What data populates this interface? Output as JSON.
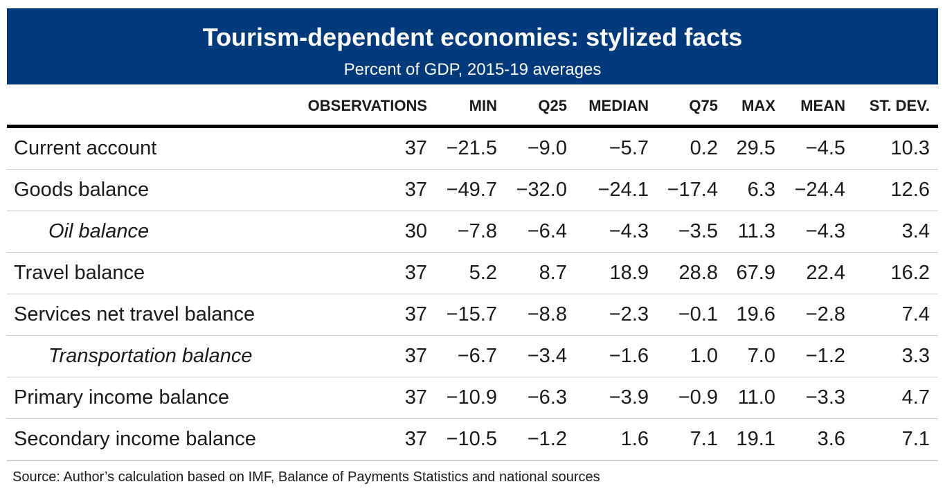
{
  "header": {
    "title": "Tourism-dependent economies: stylized facts",
    "subtitle": "Percent of GDP, 2015-19 averages"
  },
  "table": {
    "columns": [
      "OBSERVATIONS",
      "MIN",
      "Q25",
      "MEDIAN",
      "Q75",
      "MAX",
      "MEAN",
      "ST. DEV."
    ],
    "rows": [
      {
        "label": "Current account",
        "indent": false,
        "values": [
          "37",
          "−21.5",
          "−9.0",
          "−5.7",
          "0.2",
          "29.5",
          "−4.5",
          "10.3"
        ]
      },
      {
        "label": "Goods balance",
        "indent": false,
        "values": [
          "37",
          "−49.7",
          "−32.0",
          "−24.1",
          "−17.4",
          "6.3",
          "−24.4",
          "12.6"
        ]
      },
      {
        "label": "Oil balance",
        "indent": true,
        "values": [
          "30",
          "−7.8",
          "−6.4",
          "−4.3",
          "−3.5",
          "11.3",
          "−4.3",
          "3.4"
        ]
      },
      {
        "label": "Travel balance",
        "indent": false,
        "values": [
          "37",
          "5.2",
          "8.7",
          "18.9",
          "28.8",
          "67.9",
          "22.4",
          "16.2"
        ]
      },
      {
        "label": "Services net travel balance",
        "indent": false,
        "values": [
          "37",
          "−15.7",
          "−8.8",
          "−2.3",
          "−0.1",
          "19.6",
          "−2.8",
          "7.4"
        ]
      },
      {
        "label": "Transportation balance",
        "indent": true,
        "values": [
          "37",
          "−6.7",
          "−3.4",
          "−1.6",
          "1.0",
          "7.0",
          "−1.2",
          "3.3"
        ]
      },
      {
        "label": "Primary income balance",
        "indent": false,
        "values": [
          "37",
          "−10.9",
          "−6.3",
          "−3.9",
          "−0.9",
          "11.0",
          "−3.3",
          "4.7"
        ]
      },
      {
        "label": "Secondary income balance",
        "indent": false,
        "values": [
          "37",
          "−10.5",
          "−1.2",
          "1.6",
          "7.1",
          "19.1",
          "3.6",
          "7.1"
        ]
      }
    ]
  },
  "footer": {
    "source": "Source: Author’s calculation based on IMF, Balance of Payments Statistics and national sources"
  },
  "colors": {
    "banner_background": "#003a7d",
    "banner_text": "#ffffff",
    "rule": "#000000",
    "row_divider": "#cfcfcf"
  }
}
